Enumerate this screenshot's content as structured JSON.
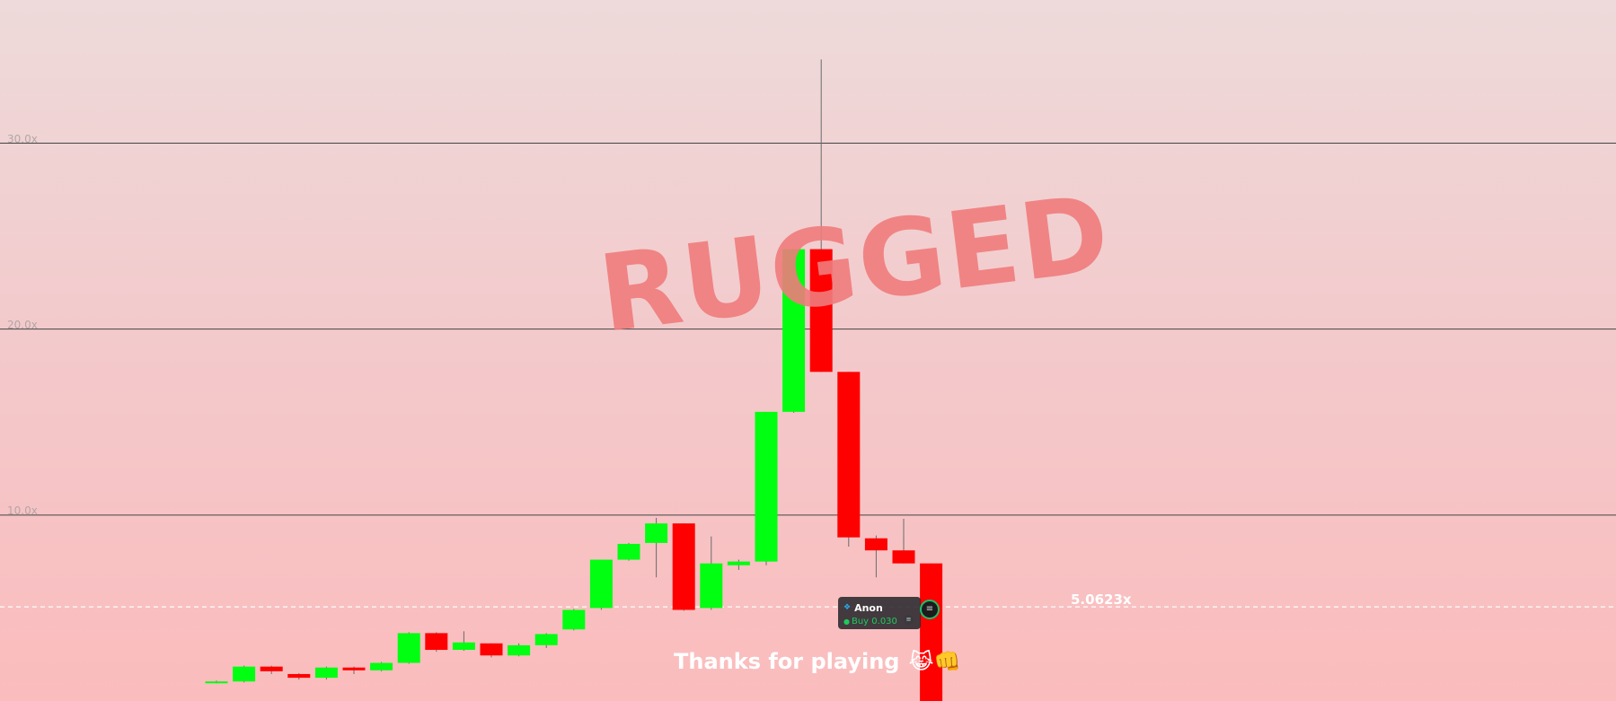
{
  "chart_data": {
    "type": "candlestick",
    "y_unit": "x",
    "ylim": [
      0,
      37.7
    ],
    "grid": "horizontal",
    "y_ticks": [
      {
        "value": 10,
        "label": "10.0x"
      },
      {
        "value": 20,
        "label": "20.0x"
      },
      {
        "value": 30,
        "label": "30.0x"
      }
    ],
    "current_value": 5.0623,
    "current_label": "5.0623x",
    "candles": [
      {
        "open": 1.0,
        "close": 1.05,
        "high": 1.1,
        "low": 0.95
      },
      {
        "open": 1.05,
        "close": 1.85,
        "high": 1.9,
        "low": 1.0
      },
      {
        "open": 1.85,
        "close": 1.6,
        "high": 1.9,
        "low": 1.45
      },
      {
        "open": 1.45,
        "close": 1.25,
        "high": 1.5,
        "low": 1.15
      },
      {
        "open": 1.25,
        "close": 1.8,
        "high": 1.85,
        "low": 1.15
      },
      {
        "open": 1.8,
        "close": 1.65,
        "high": 1.85,
        "low": 1.45
      },
      {
        "open": 1.65,
        "close": 2.05,
        "high": 2.1,
        "low": 1.6
      },
      {
        "open": 2.05,
        "close": 3.65,
        "high": 3.7,
        "low": 2.0
      },
      {
        "open": 3.65,
        "close": 2.75,
        "high": 3.7,
        "low": 2.65
      },
      {
        "open": 2.75,
        "close": 3.15,
        "high": 3.75,
        "low": 2.7
      },
      {
        "open": 3.1,
        "close": 2.45,
        "high": 3.1,
        "low": 2.35
      },
      {
        "open": 2.45,
        "close": 3.0,
        "high": 3.1,
        "low": 2.4
      },
      {
        "open": 3.0,
        "close": 3.6,
        "high": 3.65,
        "low": 2.85
      },
      {
        "open": 3.85,
        "close": 4.9,
        "high": 4.95,
        "low": 3.8
      },
      {
        "open": 5.0,
        "close": 7.6,
        "high": 7.6,
        "low": 4.9
      },
      {
        "open": 7.6,
        "close": 8.45,
        "high": 8.5,
        "low": 7.55
      },
      {
        "open": 8.5,
        "close": 9.55,
        "high": 9.85,
        "low": 6.65
      },
      {
        "open": 9.55,
        "close": 4.9,
        "high": 9.55,
        "low": 4.85
      },
      {
        "open": 5.0,
        "close": 7.4,
        "high": 8.85,
        "low": 4.9
      },
      {
        "open": 7.3,
        "close": 7.5,
        "high": 7.6,
        "low": 7.05
      },
      {
        "open": 7.5,
        "close": 15.55,
        "high": 15.55,
        "low": 7.3
      },
      {
        "open": 15.55,
        "close": 24.3,
        "high": 24.3,
        "low": 15.5
      },
      {
        "open": 24.3,
        "close": 17.7,
        "high": 34.5,
        "low": 17.7
      },
      {
        "open": 17.7,
        "close": 8.8,
        "high": 17.7,
        "low": 8.3
      },
      {
        "open": 8.75,
        "close": 8.1,
        "high": 8.9,
        "low": 6.65
      },
      {
        "open": 8.1,
        "close": 7.4,
        "high": 9.8,
        "low": 7.4
      },
      {
        "open": 7.4,
        "close": 0.0,
        "high": 7.4,
        "low": 0.0
      }
    ]
  },
  "overlay": {
    "status_text": "RUGGED",
    "footer_message": "Thanks for playing",
    "footer_emoji": "😹👊"
  },
  "trade_tag": {
    "player_name": "Anon",
    "action_text": "Buy 0.030",
    "name_color": "#ffffff",
    "action_color": "#1fc95b",
    "icon": "bird-icon",
    "coin_icon": "coin-icon"
  },
  "colors": {
    "up": "#00ff11",
    "down": "#ff0000",
    "grid": "#444444",
    "current_line": "#ffffff"
  }
}
